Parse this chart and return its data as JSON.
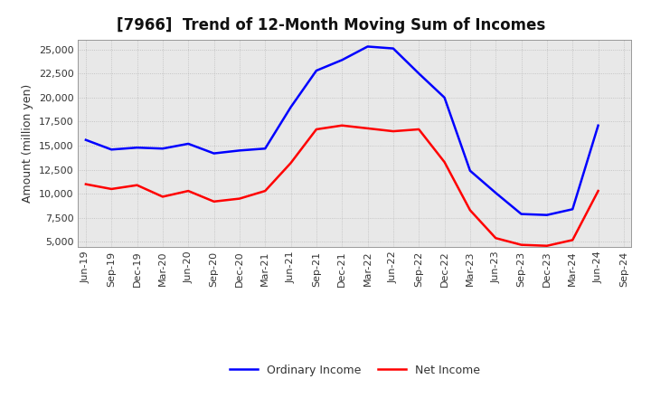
{
  "title": "[7966]  Trend of 12-Month Moving Sum of Incomes",
  "ylabel": "Amount (million yen)",
  "x_labels": [
    "Jun-19",
    "Sep-19",
    "Dec-19",
    "Mar-20",
    "Jun-20",
    "Sep-20",
    "Dec-20",
    "Mar-21",
    "Jun-21",
    "Sep-21",
    "Dec-21",
    "Mar-22",
    "Jun-22",
    "Sep-22",
    "Dec-22",
    "Mar-23",
    "Jun-23",
    "Sep-23",
    "Dec-23",
    "Mar-24",
    "Jun-24",
    "Sep-24"
  ],
  "ordinary_income": [
    15600,
    14600,
    14800,
    14700,
    15200,
    14200,
    14500,
    14700,
    19000,
    22800,
    23900,
    25300,
    25100,
    22500,
    20000,
    12400,
    10100,
    7900,
    7800,
    8400,
    17100,
    null
  ],
  "net_income": [
    11000,
    10500,
    10900,
    9700,
    10300,
    9200,
    9500,
    10300,
    13200,
    16700,
    17100,
    16800,
    16500,
    16700,
    13300,
    8300,
    5400,
    4700,
    4600,
    5200,
    10300,
    null
  ],
  "ordinary_income_color": "#0000FF",
  "net_income_color": "#FF0000",
  "background_color": "#FFFFFF",
  "plot_bg_color": "#E8E8E8",
  "grid_color": "#BBBBBB",
  "ylim": [
    4500,
    26000
  ],
  "yticks": [
    5000,
    7500,
    10000,
    12500,
    15000,
    17500,
    20000,
    22500,
    25000
  ],
  "title_fontsize": 12,
  "axis_label_fontsize": 9,
  "tick_fontsize": 8,
  "legend_fontsize": 9,
  "line_width": 1.8
}
